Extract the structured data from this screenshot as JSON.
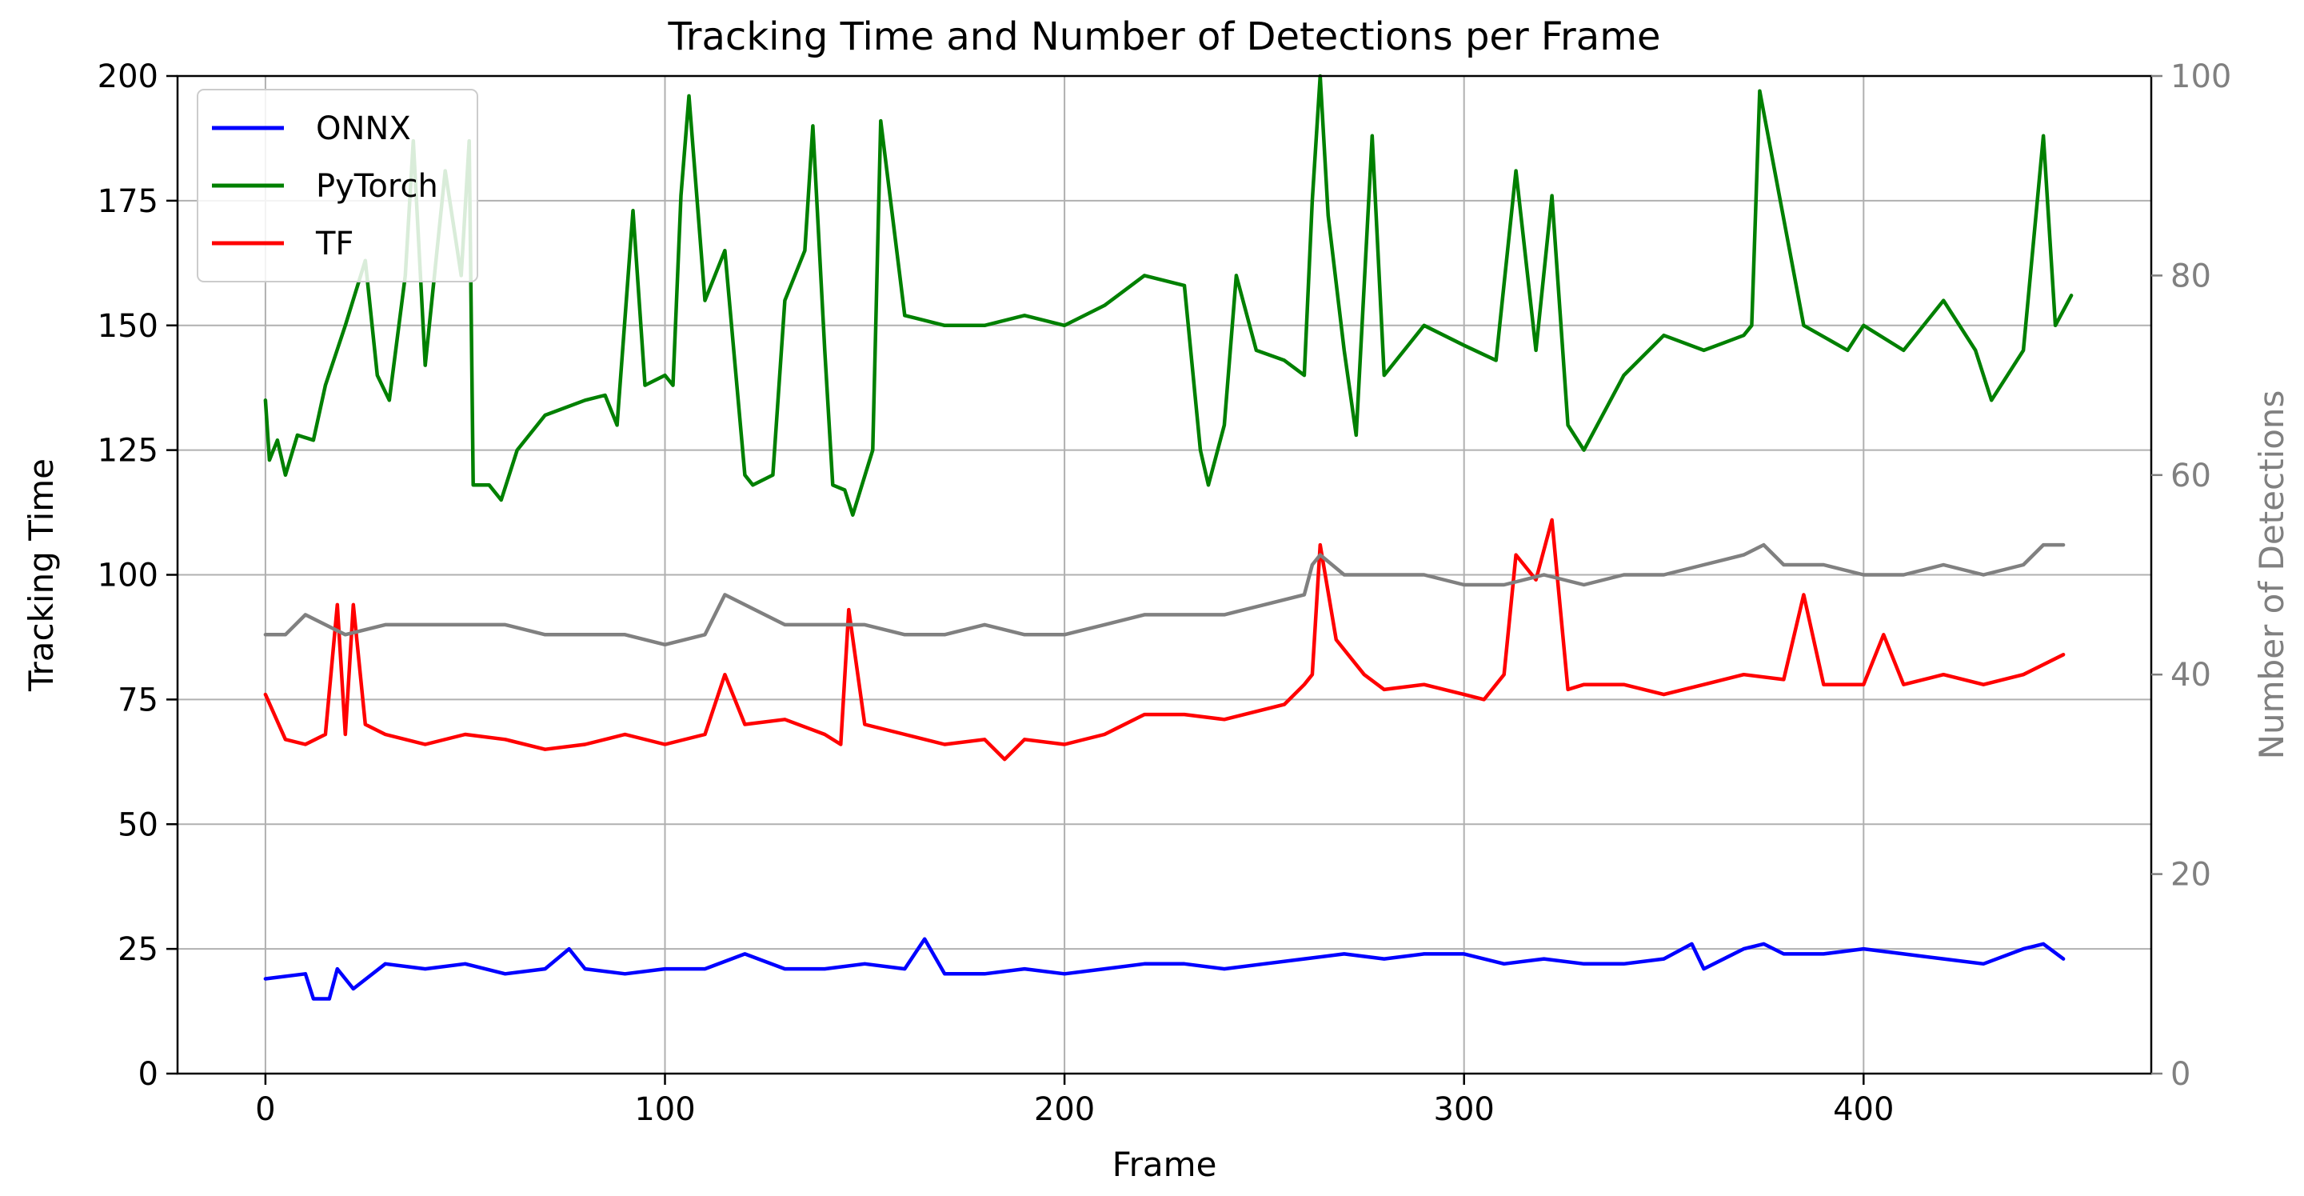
{
  "chart_data": {
    "type": "line",
    "title": "Tracking Time and Number of Detections per Frame",
    "xlabel": "Frame",
    "ylabel": "Tracking Time",
    "y2label": "Number of Detections",
    "xlim": [
      -22,
      472
    ],
    "ylim": [
      0,
      200
    ],
    "y2lim": [
      0,
      100
    ],
    "xticks": [
      0,
      100,
      200,
      300,
      400
    ],
    "yticks": [
      0,
      25,
      50,
      75,
      100,
      125,
      150,
      175,
      200
    ],
    "y2ticks": [
      0,
      20,
      40,
      60,
      80,
      100
    ],
    "grid": true,
    "legend_position": "top-left",
    "series": [
      {
        "name": "ONNX",
        "axis": "left",
        "color": "#0000ff",
        "x": [
          0,
          10,
          12,
          16,
          18,
          22,
          30,
          40,
          50,
          60,
          70,
          76,
          80,
          90,
          100,
          110,
          120,
          130,
          140,
          150,
          160,
          165,
          170,
          180,
          190,
          200,
          210,
          220,
          230,
          240,
          250,
          260,
          270,
          280,
          290,
          300,
          310,
          320,
          330,
          340,
          350,
          357,
          360,
          370,
          375,
          380,
          390,
          400,
          410,
          420,
          430,
          440,
          445,
          450
        ],
        "values": [
          19,
          20,
          15,
          15,
          21,
          17,
          22,
          21,
          22,
          20,
          21,
          25,
          21,
          20,
          21,
          21,
          24,
          21,
          21,
          22,
          21,
          27,
          20,
          20,
          21,
          20,
          21,
          22,
          22,
          21,
          22,
          23,
          24,
          23,
          24,
          24,
          22,
          23,
          22,
          22,
          23,
          26,
          21,
          25,
          26,
          24,
          24,
          25,
          24,
          23,
          22,
          25,
          26,
          23
        ]
      },
      {
        "name": "PyTorch",
        "axis": "left",
        "color": "#008000",
        "x": [
          0,
          1,
          3,
          5,
          8,
          12,
          15,
          20,
          25,
          28,
          31,
          35,
          37,
          40,
          45,
          49,
          51,
          52,
          56,
          59,
          63,
          70,
          80,
          85,
          88,
          92,
          95,
          100,
          102,
          104,
          106,
          110,
          115,
          120,
          122,
          127,
          130,
          135,
          137,
          140,
          142,
          145,
          147,
          152,
          154,
          160,
          170,
          180,
          190,
          200,
          210,
          220,
          230,
          234,
          236,
          240,
          243,
          248,
          255,
          260,
          262,
          264,
          266,
          270,
          273,
          277,
          280,
          290,
          300,
          308,
          313,
          318,
          322,
          326,
          330,
          340,
          350,
          360,
          370,
          372,
          374,
          385,
          396,
          400,
          410,
          420,
          428,
          432,
          440,
          445,
          448,
          452
        ],
        "values": [
          135,
          123,
          127,
          120,
          128,
          127,
          138,
          150,
          163,
          140,
          135,
          160,
          187,
          142,
          181,
          160,
          187,
          118,
          118,
          115,
          125,
          132,
          135,
          136,
          130,
          173,
          138,
          140,
          138,
          176,
          196,
          155,
          165,
          120,
          118,
          120,
          155,
          165,
          190,
          145,
          118,
          117,
          112,
          125,
          191,
          152,
          150,
          150,
          152,
          150,
          154,
          160,
          158,
          125,
          118,
          130,
          160,
          145,
          143,
          140,
          175,
          200,
          172,
          145,
          128,
          188,
          140,
          150,
          146,
          143,
          181,
          145,
          176,
          130,
          125,
          140,
          148,
          145,
          148,
          150,
          197,
          150,
          145,
          150,
          145,
          155,
          145,
          135,
          145,
          188,
          150,
          156
        ]
      },
      {
        "name": "TF",
        "axis": "left",
        "color": "#ff0000",
        "x": [
          0,
          5,
          10,
          15,
          18,
          20,
          22,
          25,
          30,
          40,
          50,
          60,
          70,
          80,
          90,
          100,
          110,
          115,
          120,
          130,
          140,
          144,
          146,
          150,
          160,
          170,
          180,
          185,
          190,
          200,
          210,
          220,
          230,
          240,
          250,
          255,
          260,
          262,
          264,
          268,
          275,
          280,
          290,
          300,
          305,
          310,
          313,
          318,
          322,
          326,
          330,
          340,
          350,
          360,
          370,
          380,
          385,
          390,
          400,
          405,
          410,
          420,
          430,
          440,
          450
        ],
        "values": [
          76,
          67,
          66,
          68,
          94,
          68,
          94,
          70,
          68,
          66,
          68,
          67,
          65,
          66,
          68,
          66,
          68,
          80,
          70,
          71,
          68,
          66,
          93,
          70,
          68,
          66,
          67,
          63,
          67,
          66,
          68,
          72,
          72,
          71,
          73,
          74,
          78,
          80,
          106,
          87,
          80,
          77,
          78,
          76,
          75,
          80,
          104,
          99,
          111,
          77,
          78,
          78,
          76,
          78,
          80,
          79,
          96,
          78,
          78,
          88,
          78,
          80,
          78,
          80,
          84
        ]
      },
      {
        "name": "",
        "axis": "right",
        "color": "#808080",
        "x": [
          0,
          5,
          10,
          15,
          20,
          30,
          40,
          50,
          60,
          70,
          80,
          90,
          100,
          110,
          115,
          120,
          130,
          140,
          150,
          160,
          170,
          180,
          190,
          200,
          210,
          220,
          230,
          240,
          250,
          260,
          262,
          264,
          270,
          280,
          290,
          300,
          310,
          320,
          330,
          340,
          350,
          360,
          370,
          375,
          380,
          390,
          400,
          410,
          420,
          430,
          440,
          445,
          450
        ],
        "values": [
          44,
          44,
          46,
          45,
          44,
          45,
          45,
          45,
          45,
          44,
          44,
          44,
          43,
          44,
          48,
          47,
          45,
          45,
          45,
          44,
          44,
          45,
          44,
          44,
          45,
          46,
          46,
          46,
          47,
          48,
          51,
          52,
          50,
          50,
          50,
          49,
          49,
          50,
          49,
          50,
          50,
          51,
          52,
          53,
          51,
          51,
          50,
          50,
          51,
          50,
          51,
          53,
          53
        ]
      }
    ]
  }
}
